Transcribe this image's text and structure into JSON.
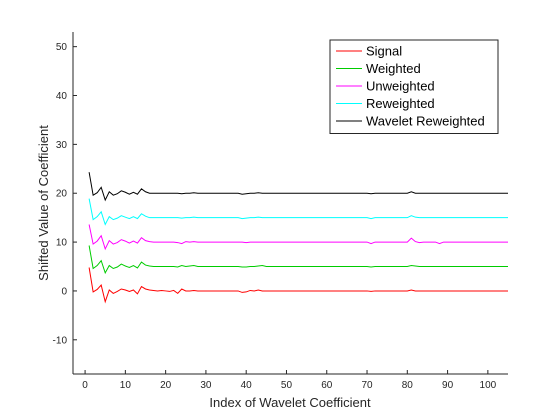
{
  "chart_data": {
    "type": "line",
    "title": "",
    "xlabel": "Index of Wavelet Coefficient",
    "ylabel": "Shifted Value of Coefficient",
    "xlim": [
      -3,
      105
    ],
    "ylim": [
      -17,
      53
    ],
    "xticks": [
      0,
      10,
      20,
      30,
      40,
      50,
      60,
      70,
      80,
      90,
      100
    ],
    "yticks": [
      -10,
      0,
      10,
      20,
      30,
      40,
      50
    ],
    "grid": false,
    "legend_position": "top-right",
    "x": [
      1,
      2,
      3,
      4,
      5,
      6,
      7,
      8,
      9,
      10,
      11,
      12,
      13,
      14,
      15,
      16,
      17,
      18,
      19,
      20,
      21,
      22,
      23,
      24,
      25,
      26,
      27,
      28,
      29,
      30,
      31,
      32,
      33,
      34,
      35,
      36,
      37,
      38,
      39,
      40,
      41,
      42,
      43,
      44,
      45,
      46,
      47,
      48,
      49,
      50,
      51,
      52,
      53,
      54,
      55,
      56,
      57,
      58,
      59,
      60,
      61,
      62,
      63,
      64,
      65,
      66,
      67,
      68,
      69,
      70,
      71,
      72,
      73,
      74,
      75,
      76,
      77,
      78,
      79,
      80,
      81,
      82,
      83,
      84,
      85,
      86,
      87,
      88,
      89,
      90,
      91,
      92,
      93,
      94,
      95,
      96,
      97,
      98,
      99,
      100,
      101,
      102,
      103,
      104,
      105
    ],
    "series": [
      {
        "name": "Signal",
        "color": "#ff0000",
        "values": [
          4.8,
          -0.2,
          0.3,
          1.2,
          -2.2,
          0.2,
          -0.5,
          -0.1,
          0.4,
          0.2,
          -0.1,
          0.2,
          -0.6,
          0.9,
          0.4,
          0.2,
          0.1,
          0,
          0.1,
          0,
          -0.1,
          0.1,
          -0.5,
          0.4,
          0,
          0,
          0.1,
          0,
          0,
          0,
          0,
          0,
          0,
          0,
          0,
          0,
          0,
          0,
          -0.3,
          -0.2,
          0.1,
          0,
          0.2,
          0,
          0,
          0,
          0,
          0,
          0,
          0,
          0,
          0,
          0,
          0,
          0,
          0,
          0,
          0,
          0,
          0,
          0,
          0,
          0,
          0,
          0,
          0,
          0,
          0,
          0,
          0,
          -0.1,
          0,
          0,
          0,
          0,
          0,
          0,
          0,
          0,
          0,
          0.2,
          0,
          0,
          0,
          0,
          0,
          0,
          0,
          0,
          0,
          0,
          0,
          0,
          0,
          0,
          0,
          0,
          0,
          0,
          0,
          0,
          0,
          0,
          0,
          0
        ]
      },
      {
        "name": "Weighted",
        "color": "#00cc00",
        "values": [
          9.3,
          4.6,
          5.2,
          6.2,
          3.7,
          5.2,
          4.6,
          4.9,
          5.5,
          5.1,
          4.8,
          5.2,
          4.7,
          5.9,
          5.3,
          5.1,
          5,
          5,
          5,
          5,
          5,
          5,
          4.9,
          5.2,
          5,
          5.1,
          5.2,
          5,
          5,
          5,
          5,
          5,
          5,
          5,
          5,
          5,
          5,
          5,
          4.9,
          4.9,
          5,
          5,
          5.1,
          5.2,
          5,
          5,
          5,
          5,
          5,
          5,
          5,
          5,
          5,
          5,
          5,
          5,
          5,
          5,
          5,
          5,
          5,
          5,
          5,
          5,
          5,
          5,
          5,
          5,
          5,
          5,
          4.9,
          5,
          5,
          5,
          5,
          5,
          5,
          5,
          5,
          5,
          5.2,
          5.1,
          5,
          5,
          5,
          5,
          5,
          5,
          5,
          5,
          5,
          5,
          5,
          5,
          5,
          5,
          5,
          5,
          5,
          5,
          5,
          5,
          5,
          5,
          5
        ]
      },
      {
        "name": "Unweighted",
        "color": "#ff00ff",
        "values": [
          13.6,
          9.6,
          10.2,
          11.3,
          8.6,
          10.3,
          9.6,
          9.9,
          10.5,
          10.2,
          9.8,
          10.2,
          9.8,
          10.9,
          10.3,
          10.1,
          10,
          10,
          10,
          10,
          10,
          10,
          9.9,
          9.7,
          10.1,
          10,
          10.1,
          10,
          10,
          10,
          10,
          10,
          10,
          10,
          10,
          10,
          10,
          10,
          10,
          9.9,
          10,
          10,
          10,
          10,
          10,
          10,
          10,
          10,
          10,
          10,
          10,
          10,
          10,
          10,
          10,
          10,
          10,
          10,
          10,
          10,
          10,
          10,
          10,
          10,
          10,
          10,
          10,
          10,
          10,
          10,
          9.7,
          10,
          10,
          10,
          10,
          10,
          10,
          10,
          10,
          10,
          10.8,
          10.1,
          9.9,
          10,
          10,
          10,
          10,
          9.7,
          10,
          10,
          10,
          10,
          10,
          10,
          10,
          10,
          10,
          10,
          10,
          10,
          10,
          10,
          10,
          10,
          10
        ]
      },
      {
        "name": "Reweighted",
        "color": "#00ffff",
        "values": [
          18.9,
          14.6,
          15.2,
          16.2,
          13.6,
          15.2,
          14.6,
          14.9,
          15.4,
          15.1,
          14.8,
          15.2,
          14.8,
          15.8,
          15.3,
          15,
          15,
          15,
          15,
          15,
          15,
          15,
          15,
          14.9,
          15,
          15,
          15.1,
          15,
          15,
          15,
          15,
          15,
          15,
          15,
          15,
          15,
          15,
          15,
          14.8,
          14.9,
          15,
          15,
          15.1,
          15,
          15,
          15,
          15,
          15,
          15,
          15,
          15,
          15,
          15,
          15,
          15,
          15,
          15,
          15,
          15,
          15,
          15,
          15,
          15,
          15,
          15,
          15,
          15,
          15,
          15,
          15,
          14.8,
          15,
          15,
          15,
          15,
          15,
          15,
          15,
          15,
          15,
          15.4,
          15.1,
          15,
          15,
          15,
          15,
          15,
          15,
          15,
          15,
          15,
          15,
          15,
          15,
          15,
          15,
          15,
          15,
          15,
          15,
          15,
          15,
          15,
          15,
          15
        ]
      },
      {
        "name": "Wavelet Reweighted",
        "color": "#000000",
        "values": [
          24.3,
          19.6,
          20.1,
          21.2,
          18.6,
          20.3,
          19.6,
          19.9,
          20.5,
          20.2,
          19.8,
          20.2,
          19.8,
          20.9,
          20.3,
          20,
          20,
          20,
          20,
          20,
          20,
          20,
          20,
          19.9,
          20,
          20,
          20.1,
          20,
          20,
          20,
          20,
          20,
          20,
          20,
          20,
          20,
          20,
          20,
          19.8,
          19.9,
          20,
          20,
          20.1,
          20,
          20,
          20,
          20,
          20,
          20,
          20,
          20,
          20,
          20,
          20,
          20,
          20,
          20,
          20,
          20,
          20,
          20,
          20,
          20,
          20,
          20,
          20,
          20,
          20,
          20,
          20,
          19.9,
          20,
          20,
          20,
          20,
          20,
          20,
          20,
          20,
          20,
          20.3,
          20,
          20,
          20,
          20,
          20,
          20,
          20,
          20,
          20,
          20,
          20,
          20,
          20,
          20,
          20,
          20,
          20,
          20,
          20,
          20,
          20,
          20,
          20,
          20
        ]
      }
    ]
  }
}
